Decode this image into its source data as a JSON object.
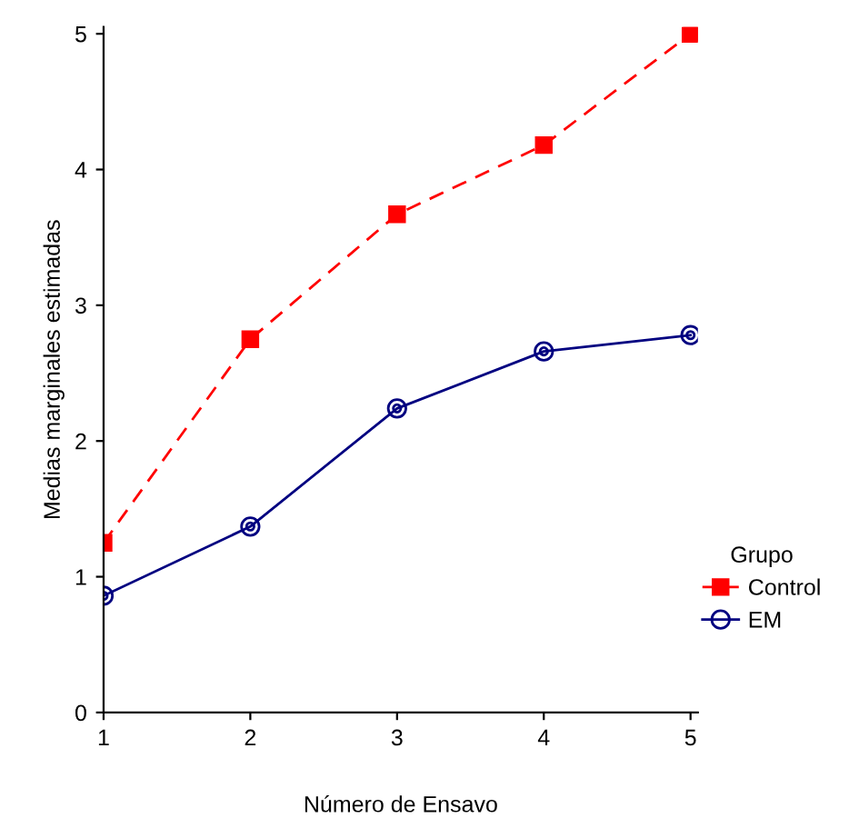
{
  "chart_data": {
    "type": "line",
    "xlabel": "Número de Ensavo",
    "ylabel": "Medias marginales estimadas",
    "legend_title": "Grupo",
    "x": [
      1,
      2,
      3,
      4,
      5
    ],
    "series": [
      {
        "name": "Control",
        "color": "#ff0000",
        "values": [
          1.25,
          2.75,
          3.67,
          4.18,
          5.0
        ],
        "marker": "square",
        "line_style": "dashed"
      },
      {
        "name": "EM",
        "color": "#000080",
        "values": [
          0.86,
          1.37,
          2.24,
          2.66,
          2.78
        ],
        "marker": "circle",
        "line_style": "solid"
      }
    ],
    "xlim": [
      1,
      5.05
    ],
    "ylim": [
      0,
      5.05
    ],
    "xticks": [
      1,
      2,
      3,
      4,
      5
    ],
    "yticks": [
      0,
      1,
      2,
      3,
      4,
      5
    ],
    "grid": false,
    "legend": "right"
  }
}
